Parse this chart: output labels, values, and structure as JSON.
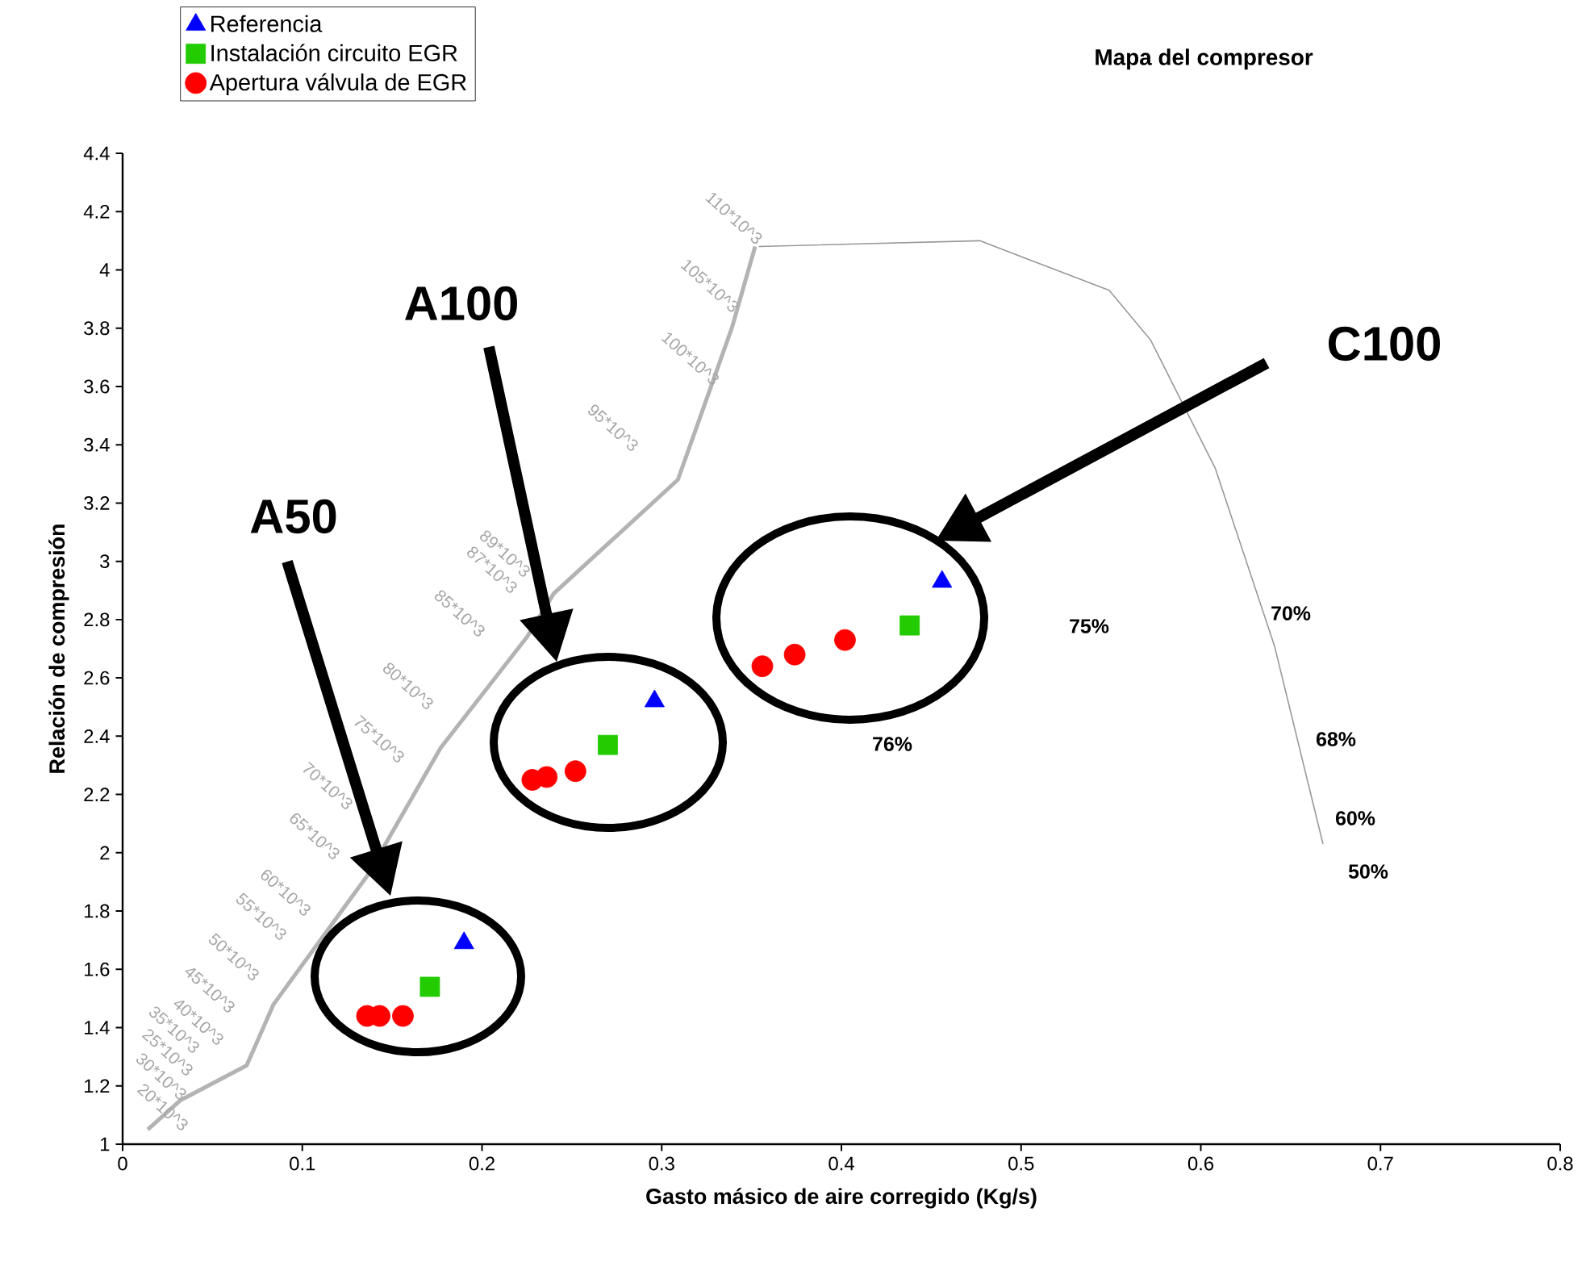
{
  "chart_data": {
    "type": "scatter",
    "title": "Mapa del compresor",
    "xlabel": "Gasto másico de aire corregido (Kg/s)",
    "ylabel": "Relación de compresión",
    "xlim": [
      0,
      0.8
    ],
    "ylim": [
      1,
      4.4
    ],
    "xticks": [
      0,
      0.1,
      0.2,
      0.3,
      0.4,
      0.5,
      0.6,
      0.7,
      0.8
    ],
    "yticks": [
      1,
      1.2,
      1.4,
      1.6,
      1.8,
      2,
      2.2,
      2.4,
      2.6,
      2.8,
      3,
      3.2,
      3.4,
      3.6,
      3.8,
      4,
      4.2,
      4.4
    ],
    "legend": "top left",
    "series": [
      {
        "name": "Referencia",
        "color": "#0000ff",
        "marker": "triangle",
        "x": [
          0.19,
          0.296,
          0.456
        ],
        "values": [
          1.69,
          2.52,
          2.93
        ]
      },
      {
        "name": "Instalación circuito EGR",
        "color": "#22cc00",
        "marker": "square",
        "x": [
          0.171,
          0.27,
          0.438
        ],
        "values": [
          1.54,
          2.37,
          2.78
        ]
      },
      {
        "name": "Apertura válvula de EGR",
        "color": "#ff0000",
        "marker": "circle",
        "x": [
          0.136,
          0.143,
          0.156,
          0.228,
          0.236,
          0.252,
          0.356,
          0.374,
          0.402
        ],
        "values": [
          1.44,
          1.44,
          1.44,
          2.25,
          2.26,
          2.28,
          2.64,
          2.68,
          2.73
        ]
      },
      {
        "type": "line",
        "color": "#b3b3b3",
        "marker": "none",
        "x": [
          0.014,
          0.032,
          0.069,
          0.084,
          0.136,
          0.177,
          0.225,
          0.24,
          0.309,
          0.339,
          0.352
        ],
        "values": [
          1.05,
          1.15,
          1.27,
          1.48,
          1.92,
          2.36,
          2.74,
          2.89,
          3.28,
          3.8,
          4.08
        ]
      },
      {
        "type": "line",
        "color": "#999999",
        "marker": "none",
        "x": [
          0.354,
          0.477,
          0.549,
          0.572,
          0.608,
          0.641,
          0.668
        ],
        "values": [
          4.08,
          4.1,
          3.93,
          3.76,
          3.32,
          2.71,
          2.03
        ]
      }
    ],
    "annotations": [
      "110*10^3",
      "105*10^3",
      "100*10^3",
      "95*10^3",
      "89*10^3",
      "87*10^3",
      "85*10^3",
      "80*10^3",
      "75*10^3",
      "70*10^3",
      "65*10^3",
      "60*10^3",
      "55*10^3",
      "50*10^3",
      "45*10^3",
      "40*10^3",
      "35*10^3",
      "25*10^3",
      "30*10^3",
      "20*10^3",
      "75%",
      "70%",
      "76%",
      "68%",
      "60%",
      "50%",
      "A100",
      "C100",
      "A50"
    ]
  }
}
